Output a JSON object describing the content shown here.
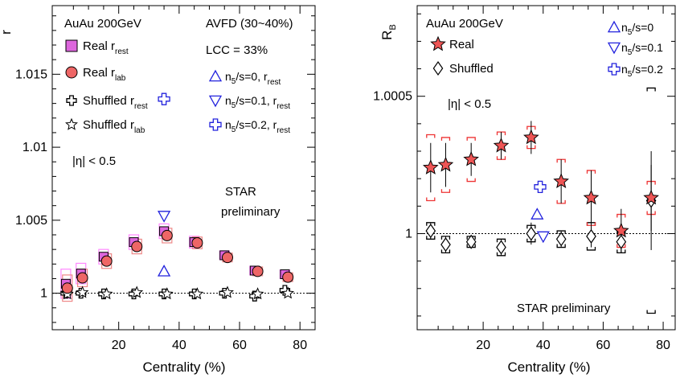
{
  "chart_data": [
    {
      "type": "scatter",
      "xlabel": "Centrality (%)",
      "ylabel": "r",
      "xlim": [
        -2,
        85
      ],
      "ylim": [
        0.9975,
        1.0197
      ],
      "xticks": [
        "20",
        "40",
        "60",
        "80"
      ],
      "yticks": [
        "1",
        "1.005",
        "1.01",
        "1.015"
      ],
      "reference_line": 1,
      "annotations": {
        "system": "AuAu 200GeV",
        "model": "AVFD (30~40%)",
        "lcc": "LCC = 33%",
        "eta": "|η| < 0.5",
        "prelim_line1": "STAR",
        "prelim_line2": "preliminary"
      },
      "legend_left": [
        {
          "key": "real_rest",
          "text": "Real r",
          "sub": "rest"
        },
        {
          "key": "real_lab",
          "text": "Real r",
          "sub": "lab"
        },
        {
          "key": "shuf_rest",
          "text": "Shuffled r",
          "sub": "rest"
        },
        {
          "key": "shuf_lab",
          "text": "Shuffled r",
          "sub": "lab"
        }
      ],
      "legend_right": [
        {
          "key": "n0",
          "main": "n",
          "sub1": "5",
          "mid": "/s=0,    r",
          "sub2": "rest"
        },
        {
          "key": "n01",
          "main": "n",
          "sub1": "5",
          "mid": "/s=0.1, r",
          "sub2": "rest"
        },
        {
          "key": "n02",
          "main": "n",
          "sub1": "5",
          "mid": "/s=0.2, r",
          "sub2": "rest"
        }
      ],
      "colors": {
        "real_rest": "#dd66dd",
        "real_lab": "#ee6666",
        "sys_rest": "#ff88ff",
        "sys_lab": "#ee8888",
        "model": "#2222dd"
      },
      "series": {
        "real_rest": [
          [
            2.5,
            1.00065
          ],
          [
            7.5,
            1.00135
          ],
          [
            15,
            1.0025
          ],
          [
            25,
            1.0035
          ],
          [
            35,
            1.00425
          ],
          [
            45,
            1.0035
          ],
          [
            55,
            1.0026
          ],
          [
            65,
            1.00155
          ],
          [
            75,
            1.0013
          ]
        ],
        "real_lab": [
          [
            3,
            1.00035
          ],
          [
            8,
            1.00105
          ],
          [
            16,
            1.0022
          ],
          [
            26,
            1.0032
          ],
          [
            36,
            1.00395
          ],
          [
            46,
            1.00345
          ],
          [
            56,
            1.00245
          ],
          [
            66,
            1.0015
          ],
          [
            76,
            1.0011
          ]
        ],
        "shuf_rest": [
          [
            2.5,
            1.0
          ],
          [
            7.5,
            1.0
          ],
          [
            15,
            0.99995
          ],
          [
            25,
            0.99995
          ],
          [
            35,
            0.99995
          ],
          [
            45,
            0.99995
          ],
          [
            55,
            1.0
          ],
          [
            65,
            0.9998
          ],
          [
            75,
            1.0002
          ]
        ],
        "shuf_lab": [
          [
            3,
            0.99995
          ],
          [
            8,
            1.00005
          ],
          [
            16,
            0.99995
          ],
          [
            26,
            1.00005
          ],
          [
            36,
            0.99995
          ],
          [
            46,
            0.99995
          ],
          [
            56,
            1.00005
          ],
          [
            66,
            0.99995
          ],
          [
            76,
            1.0
          ]
        ],
        "n0": [
          [
            35,
            1.0015
          ]
        ],
        "n01": [
          [
            35,
            1.0053
          ]
        ],
        "n02": [
          [
            35,
            1.0133
          ]
        ]
      },
      "sys_halfwidth": {
        "real_rest": [
          0.001,
          0.0007,
          0.0005,
          0.0005,
          0.0005,
          0.0004,
          0.0003,
          0.0003,
          0.0003
        ],
        "real_lab": [
          0.0009,
          0.0006,
          0.0005,
          0.0005,
          0.0005,
          0.0004,
          0.0003,
          0.0003,
          0.0003
        ]
      }
    },
    {
      "type": "scatter",
      "xlabel": "Centrality (%)",
      "ylabel": "R",
      "ylabel_sub": "B",
      "xlim": [
        -2,
        84
      ],
      "ylim": [
        0.99965,
        1.00083
      ],
      "xticks": [
        "20",
        "40",
        "60",
        "80"
      ],
      "yticks": [
        "1",
        "1.0005"
      ],
      "reference_line": 1,
      "annotations": {
        "system": "AuAu 200GeV",
        "eta": "|η| < 0.5",
        "prelim": "STAR preliminary"
      },
      "legend_left": [
        {
          "key": "real",
          "text": "Real"
        },
        {
          "key": "shuffled",
          "text": "Shuffled"
        }
      ],
      "legend_right": [
        {
          "key": "n0",
          "main": "n",
          "sub1": "5",
          "mid": "/s=0"
        },
        {
          "key": "n01",
          "main": "n",
          "sub1": "5",
          "mid": "/s=0.1"
        },
        {
          "key": "n02",
          "main": "n",
          "sub1": "5",
          "mid": "/s=0.2"
        }
      ],
      "colors": {
        "real": "#ee5555",
        "sys": "#ee3333",
        "model": "#2222dd"
      },
      "series": {
        "real": [
          [
            2.5,
            1.00024,
            9e-05
          ],
          [
            7.5,
            1.00025,
            8e-05
          ],
          [
            16,
            1.00027,
            6e-05
          ],
          [
            26,
            1.00032,
            5e-05
          ],
          [
            36,
            1.00035,
            6e-05
          ],
          [
            46,
            1.00019,
            8e-05
          ],
          [
            56,
            1.00013,
            0.0001
          ],
          [
            66,
            1.00001,
            8e-05
          ],
          [
            76,
            1.00013,
            0.00012
          ]
        ],
        "shuffled": [
          [
            2.5,
            1.00001,
            3e-05
          ],
          [
            7.5,
            0.99996,
            3e-05
          ],
          [
            16,
            0.99997,
            2e-05
          ],
          [
            26,
            0.99995,
            3e-05
          ],
          [
            36,
            1.0,
            4e-05
          ],
          [
            46,
            0.99998,
            3e-05
          ],
          [
            56,
            0.99999,
            4e-05
          ],
          [
            66,
            0.99997,
            4e-05
          ],
          [
            76,
            1.00012,
            0.00018
          ]
        ],
        "n0": [
          [
            38,
            1.00007
          ]
        ],
        "n01": [
          [
            40,
            0.99999
          ]
        ],
        "n02": [
          [
            39,
            1.00017
          ]
        ]
      },
      "sys_halfwidth": {
        "real": [
          0.00012,
          0.0001,
          8e-05,
          5e-05,
          4e-05,
          8e-05,
          0.0001,
          6e-05,
          6e-05
        ],
        "shuffled": [
          3e-05,
          3e-05,
          2e-05,
          3e-05,
          3e-05,
          3e-05,
          5e-05,
          4e-05,
          0.00041
        ]
      }
    }
  ]
}
